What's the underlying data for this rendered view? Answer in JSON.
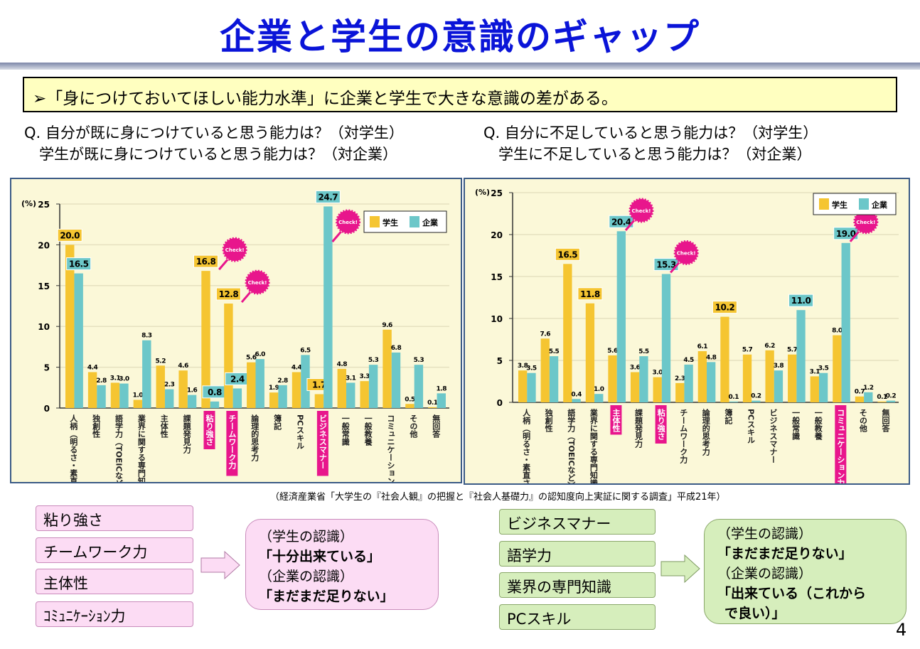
{
  "title": "企業と学生の意識のギャップ",
  "lede": "➢「身につけておいてほしい能力水準」に企業と学生で大きな意識の差がある。",
  "questions_left": [
    "Q. 自分が既に身につけていると思う能力は？（対学生）",
    "　学生が既に身につけていると思う能力は？（対企業）"
  ],
  "questions_right": [
    "Q. 自分に不足していると思う能力は？（対学生）",
    "　学生に不足していると思う能力は？（対企業）"
  ],
  "source": "（経済産業省「大学生の『社会人観』の把握と『社会人基礎力』の認知度向上実証に関する調査」平成21年）",
  "colors": {
    "student": "#f5c531",
    "company": "#6cc7c9",
    "highlight": "#e8168c",
    "title": "#0a14d8"
  },
  "chart_data": [
    {
      "type": "bar",
      "ylabel": "(%)",
      "ylim": [
        0,
        25
      ],
      "yticks": [
        0,
        5,
        10,
        15,
        20,
        25
      ],
      "legend": "top-right",
      "badge": "Check!",
      "categories": [
        "人柄（明るさ・素直さ等）",
        "独創性",
        "語学力（TOEICなど）",
        "業界に関する専門知識",
        "主体性",
        "課題発見力",
        "粘り強さ",
        "チームワーク力",
        "論理的思考力",
        "簿記",
        "PCスキル",
        "ビジネスマナー",
        "一般常識",
        "一般教養",
        "コミュニケーション力",
        "その他",
        "無回答"
      ],
      "highlight": [
        "粘り強さ",
        "チームワーク力",
        "ビジネスマナー"
      ],
      "series": [
        {
          "name": "学生",
          "values": [
            20.0,
            4.4,
            3.1,
            1.0,
            5.2,
            4.6,
            16.8,
            12.8,
            5.6,
            1.9,
            4.4,
            1.7,
            4.8,
            3.3,
            9.6,
            0.5,
            0.1
          ]
        },
        {
          "name": "企業",
          "values": [
            16.5,
            2.8,
            3.0,
            8.3,
            2.3,
            1.6,
            0.8,
            2.4,
            6.0,
            2.8,
            6.5,
            24.7,
            3.1,
            5.3,
            6.8,
            5.3,
            1.8
          ]
        }
      ]
    },
    {
      "type": "bar",
      "ylabel": "(%)",
      "ylim": [
        0,
        25
      ],
      "yticks": [
        0,
        5,
        10,
        15,
        20,
        25
      ],
      "legend": "top-right",
      "badge": "Check!",
      "categories": [
        "人柄（明るさ・素直さ等）",
        "独創性",
        "語学力（TOEICなど）",
        "業界に関する専門知識",
        "主体性",
        "課題発見力",
        "粘り強さ",
        "チームワーク力",
        "論理的思考力",
        "簿記",
        "PCスキル",
        "ビジネスマナー",
        "一般常識",
        "一般教養",
        "コミュニケーション力",
        "その他",
        "無回答"
      ],
      "highlight": [
        "主体性",
        "粘り強さ",
        "コミュニケーション力"
      ],
      "series": [
        {
          "name": "学生",
          "values": [
            3.8,
            7.6,
            16.5,
            11.8,
            5.6,
            3.6,
            3.0,
            2.3,
            6.1,
            10.2,
            5.7,
            6.2,
            5.7,
            3.1,
            8.0,
            0.7,
            0.1
          ]
        },
        {
          "name": "企業",
          "values": [
            3.5,
            5.5,
            0.4,
            1.0,
            20.4,
            5.5,
            15.3,
            4.5,
            4.8,
            0.1,
            0.2,
            3.8,
            11.0,
            3.5,
            19.0,
            1.2,
            0.2
          ]
        }
      ]
    }
  ],
  "left_items": [
    "粘り強さ",
    "チームワーク力",
    "主体性",
    "ｺﾐｭﾆｹｰｼｮﾝ力"
  ],
  "left_bubble": [
    "（学生の認識）",
    "「十分出来ている」",
    "（企業の認識）",
    "「まだまだ足りない」"
  ],
  "right_items": [
    "ビジネスマナー",
    "語学力",
    "業界の専門知識",
    "PCスキル"
  ],
  "right_bubble": [
    "（学生の認識）",
    "「まだまだ足りない」",
    "（企業の認識）",
    "「出来ている（これから",
    "で良い）」"
  ],
  "page_number": "4"
}
